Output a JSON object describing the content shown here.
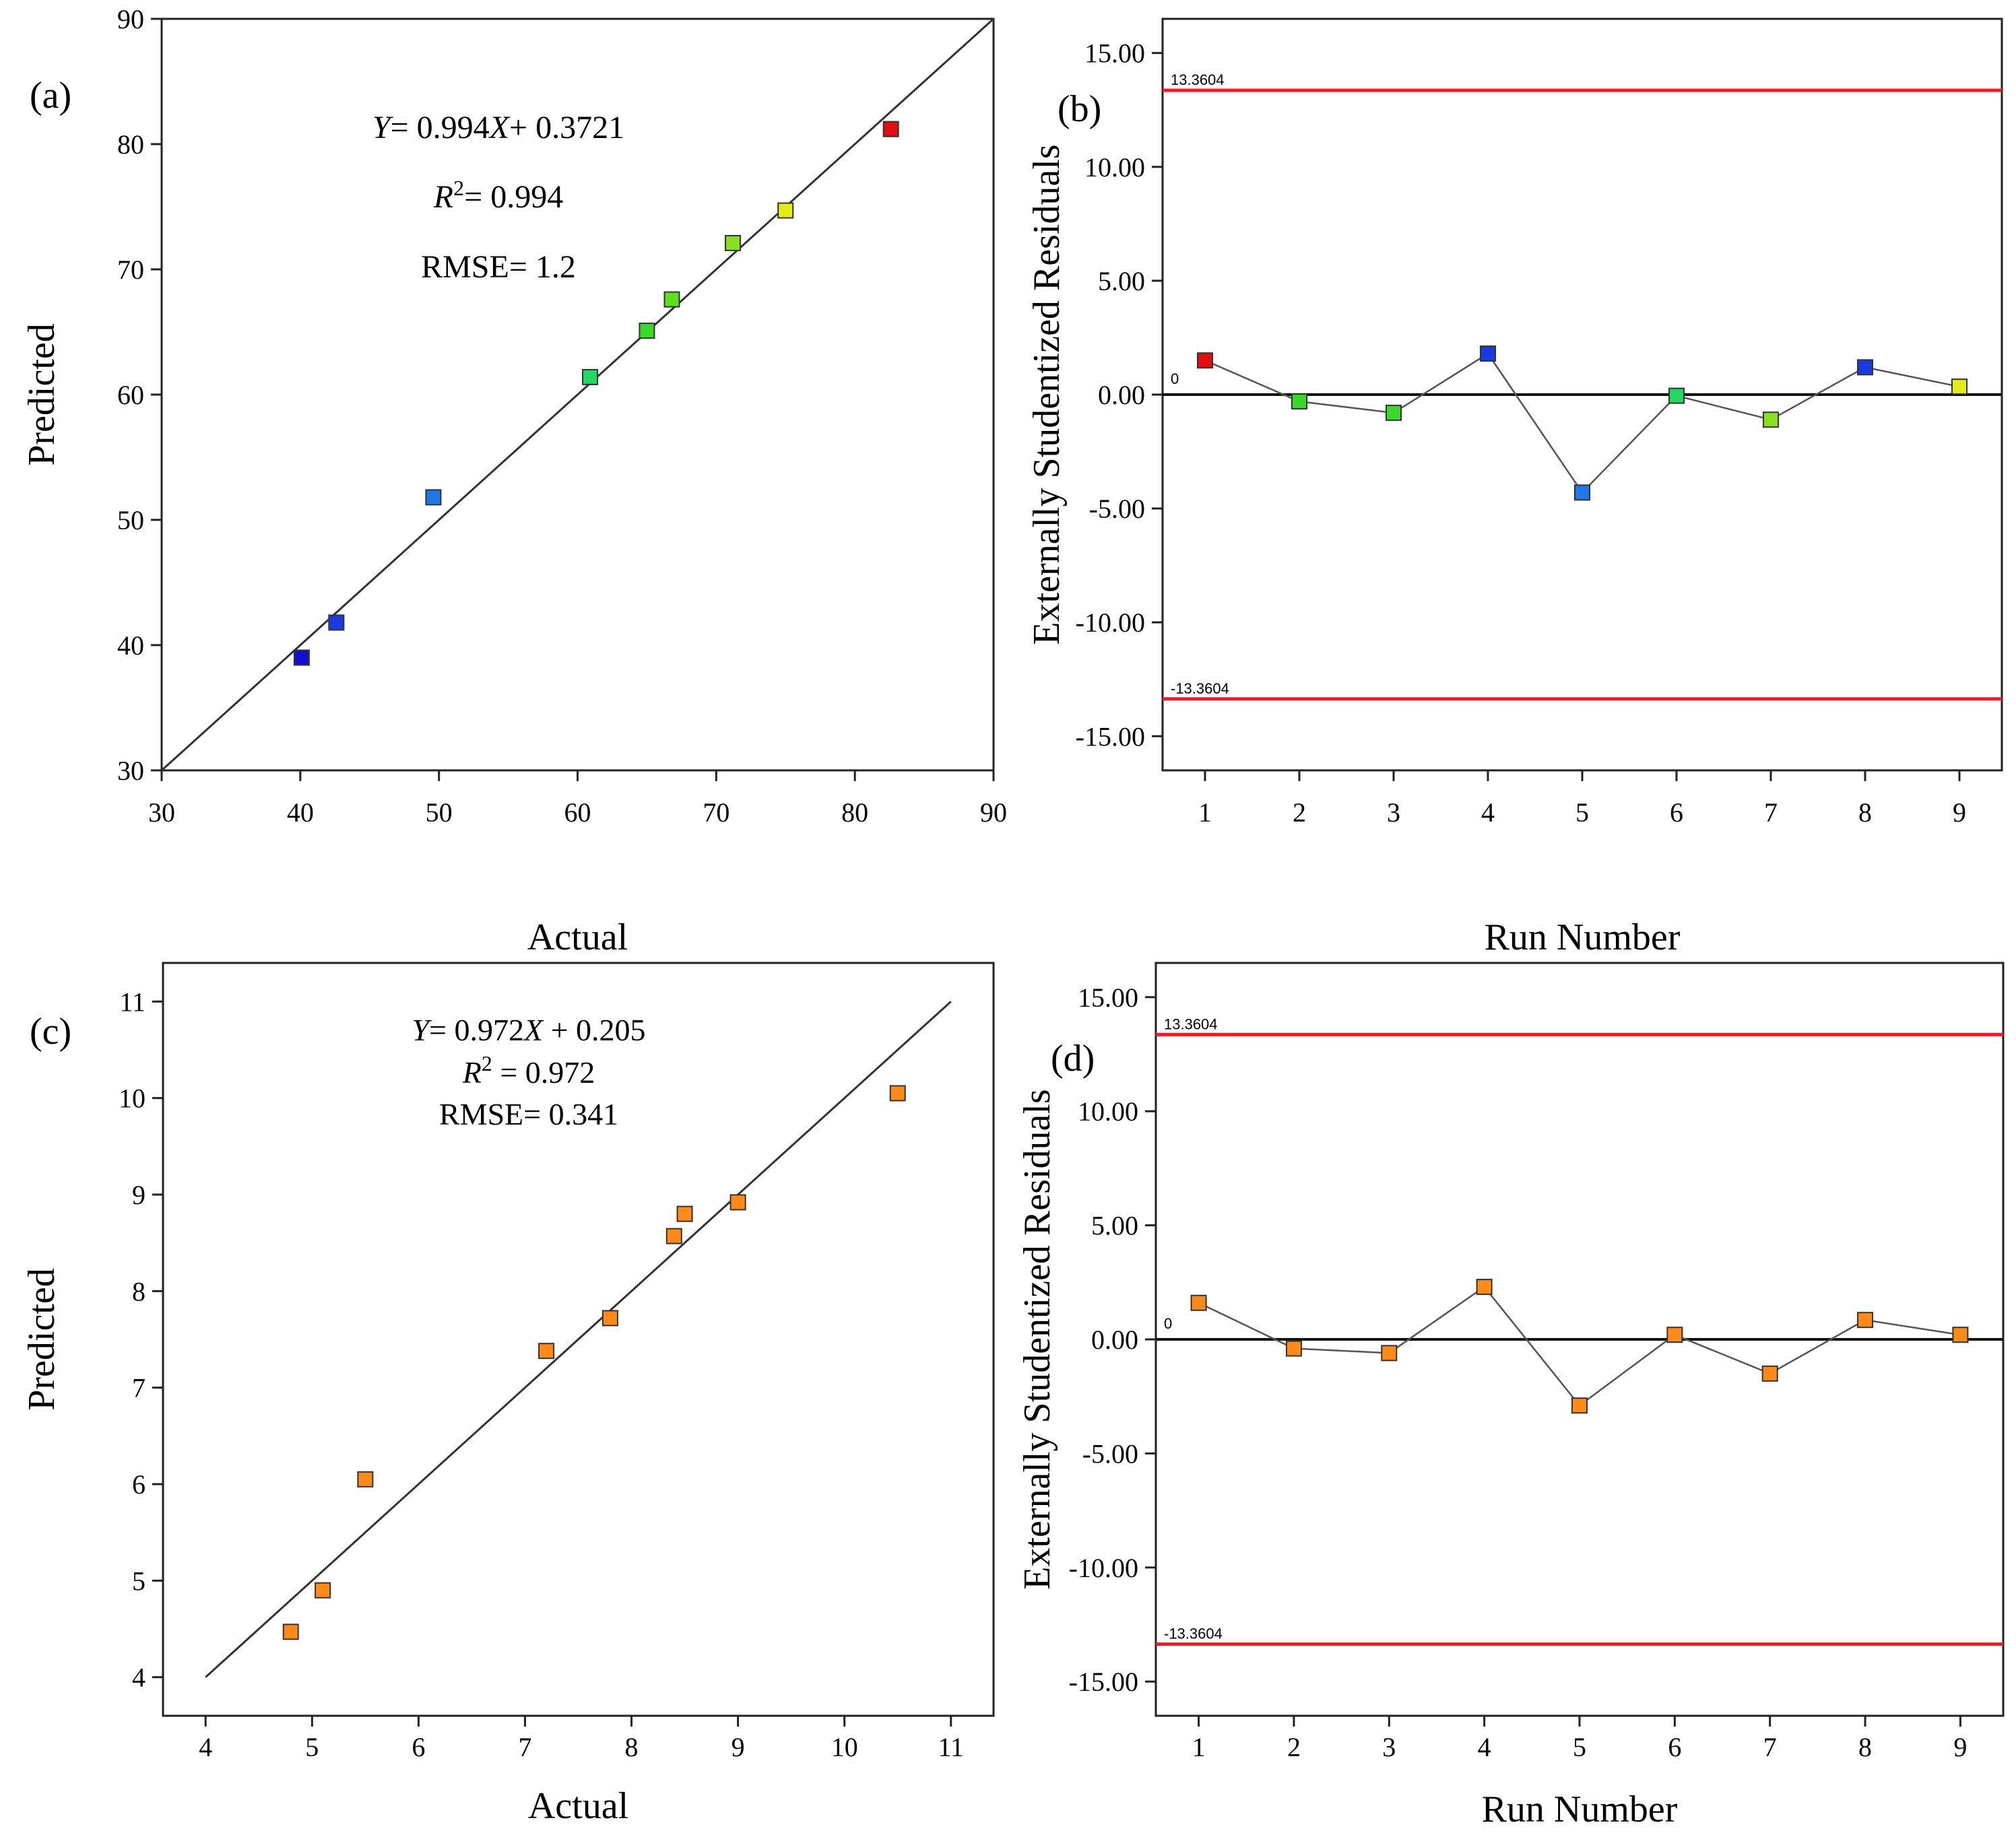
{
  "chart_data": [
    {
      "type": "scatter",
      "panel_label": "(a)",
      "xlabel": "Actual",
      "ylabel": "Predicted",
      "xlim": [
        30,
        90
      ],
      "ylim": [
        30,
        90
      ],
      "x_ticks": [
        "30",
        "40",
        "50",
        "60",
        "70",
        "80",
        "90"
      ],
      "y_ticks": [
        "30",
        "40",
        "50",
        "60",
        "70",
        "80",
        "90"
      ],
      "fit_line": {
        "slope": 0.994,
        "intercept": 0.3721,
        "x_range": [
          30,
          90
        ]
      },
      "annotations": {
        "equation": "Y= 0.994X+ 0.3721",
        "r2": "R2= 0.994",
        "rmse": "RMSE= 1.2"
      },
      "points": [
        {
          "x": 40.1,
          "y": 39.0,
          "color": "#1010d0"
        },
        {
          "x": 42.6,
          "y": 41.8,
          "color": "#1a3ae0"
        },
        {
          "x": 49.6,
          "y": 51.8,
          "color": "#1e78e6"
        },
        {
          "x": 60.9,
          "y": 61.4,
          "color": "#22d860"
        },
        {
          "x": 65.0,
          "y": 65.1,
          "color": "#3ad828"
        },
        {
          "x": 66.8,
          "y": 67.6,
          "color": "#5ce020"
        },
        {
          "x": 71.2,
          "y": 72.1,
          "color": "#88e020"
        },
        {
          "x": 75.0,
          "y": 74.7,
          "color": "#e4ec18"
        },
        {
          "x": 82.6,
          "y": 81.2,
          "color": "#e01010"
        }
      ]
    },
    {
      "type": "line",
      "panel_label": "(b)",
      "xlabel": "Run Number",
      "ylabel": "Externally Studentized Residuals",
      "xlim": [
        0.55,
        9.45
      ],
      "ylim": [
        -16.5,
        16.5
      ],
      "x_ticks": [
        "1",
        "2",
        "3",
        "4",
        "5",
        "6",
        "7",
        "8",
        "9"
      ],
      "y_tick_values": [
        -15,
        -10,
        -5,
        0,
        5,
        10,
        15
      ],
      "y_ticks": [
        "-15.00",
        "-10.00",
        "-5.00",
        "0.00",
        "5.00",
        "10.00",
        "15.00"
      ],
      "limit_lines": {
        "upper": 13.3604,
        "lower": -13.3604,
        "upper_label": "13.3604",
        "lower_label": "-13.3604",
        "zero_label": "0"
      },
      "points": [
        {
          "x": 1,
          "y": 1.5,
          "color": "#e01010"
        },
        {
          "x": 2,
          "y": -0.3,
          "color": "#3ad828"
        },
        {
          "x": 3,
          "y": -0.8,
          "color": "#3ad828"
        },
        {
          "x": 4,
          "y": 1.8,
          "color": "#1a3ae0"
        },
        {
          "x": 5,
          "y": -4.3,
          "color": "#1e78e6"
        },
        {
          "x": 6,
          "y": -0.05,
          "color": "#22d860"
        },
        {
          "x": 7,
          "y": -1.1,
          "color": "#88e020"
        },
        {
          "x": 8,
          "y": 1.2,
          "color": "#1a3ae0"
        },
        {
          "x": 9,
          "y": 0.35,
          "color": "#e4ec18"
        }
      ]
    },
    {
      "type": "scatter",
      "panel_label": "(c)",
      "xlabel": "Actual",
      "ylabel": "Predicted",
      "xlim": [
        3.6,
        11.4
      ],
      "ylim": [
        3.6,
        11.4
      ],
      "x_ticks": [
        "4",
        "5",
        "6",
        "7",
        "8",
        "9",
        "10",
        "11"
      ],
      "y_ticks": [
        "4",
        "5",
        "6",
        "7",
        "8",
        "9",
        "10",
        "11"
      ],
      "fit_line": {
        "slope": 0.972,
        "intercept": 0.205,
        "x_range": [
          4,
          11
        ]
      },
      "annotations": {
        "equation": "Y= 0.972X  + 0.205",
        "r2": "R2 = 0.972",
        "rmse": "RMSE= 0.341"
      },
      "points": [
        {
          "x": 4.8,
          "y": 4.47,
          "color": "#ff8a1a"
        },
        {
          "x": 5.1,
          "y": 4.9,
          "color": "#ff8a1a"
        },
        {
          "x": 5.5,
          "y": 6.05,
          "color": "#ff8a1a"
        },
        {
          "x": 7.2,
          "y": 7.38,
          "color": "#ff8a1a"
        },
        {
          "x": 7.8,
          "y": 7.72,
          "color": "#ff8a1a"
        },
        {
          "x": 8.4,
          "y": 8.57,
          "color": "#ff8a1a"
        },
        {
          "x": 8.5,
          "y": 8.8,
          "color": "#ff8a1a"
        },
        {
          "x": 9.0,
          "y": 8.92,
          "color": "#ff8a1a"
        },
        {
          "x": 10.5,
          "y": 10.05,
          "color": "#ff8a1a"
        }
      ]
    },
    {
      "type": "line",
      "panel_label": "(d)",
      "xlabel": "Run Number",
      "ylabel": "Externally Studentized Residuals",
      "xlim": [
        0.55,
        9.45
      ],
      "ylim": [
        -16.5,
        16.5
      ],
      "x_ticks": [
        "1",
        "2",
        "3",
        "4",
        "5",
        "6",
        "7",
        "8",
        "9"
      ],
      "y_tick_values": [
        -15,
        -10,
        -5,
        0,
        5,
        10,
        15
      ],
      "y_ticks": [
        "-15.00",
        "-10.00",
        "-5.00",
        "0.00",
        "5.00",
        "10.00",
        "15.00"
      ],
      "limit_lines": {
        "upper": 13.3604,
        "lower": -13.3604,
        "upper_label": "13.3604",
        "lower_label": "-13.3604",
        "zero_label": "0"
      },
      "points": [
        {
          "x": 1,
          "y": 1.6,
          "color": "#ff8a1a"
        },
        {
          "x": 2,
          "y": -0.4,
          "color": "#ff8a1a"
        },
        {
          "x": 3,
          "y": -0.6,
          "color": "#ff8a1a"
        },
        {
          "x": 4,
          "y": 2.3,
          "color": "#ff8a1a"
        },
        {
          "x": 5,
          "y": -2.9,
          "color": "#ff8a1a"
        },
        {
          "x": 6,
          "y": 0.2,
          "color": "#ff8a1a"
        },
        {
          "x": 7,
          "y": -1.5,
          "color": "#ff8a1a"
        },
        {
          "x": 8,
          "y": 0.85,
          "color": "#ff8a1a"
        },
        {
          "x": 9,
          "y": 0.2,
          "color": "#ff8a1a"
        }
      ]
    }
  ]
}
